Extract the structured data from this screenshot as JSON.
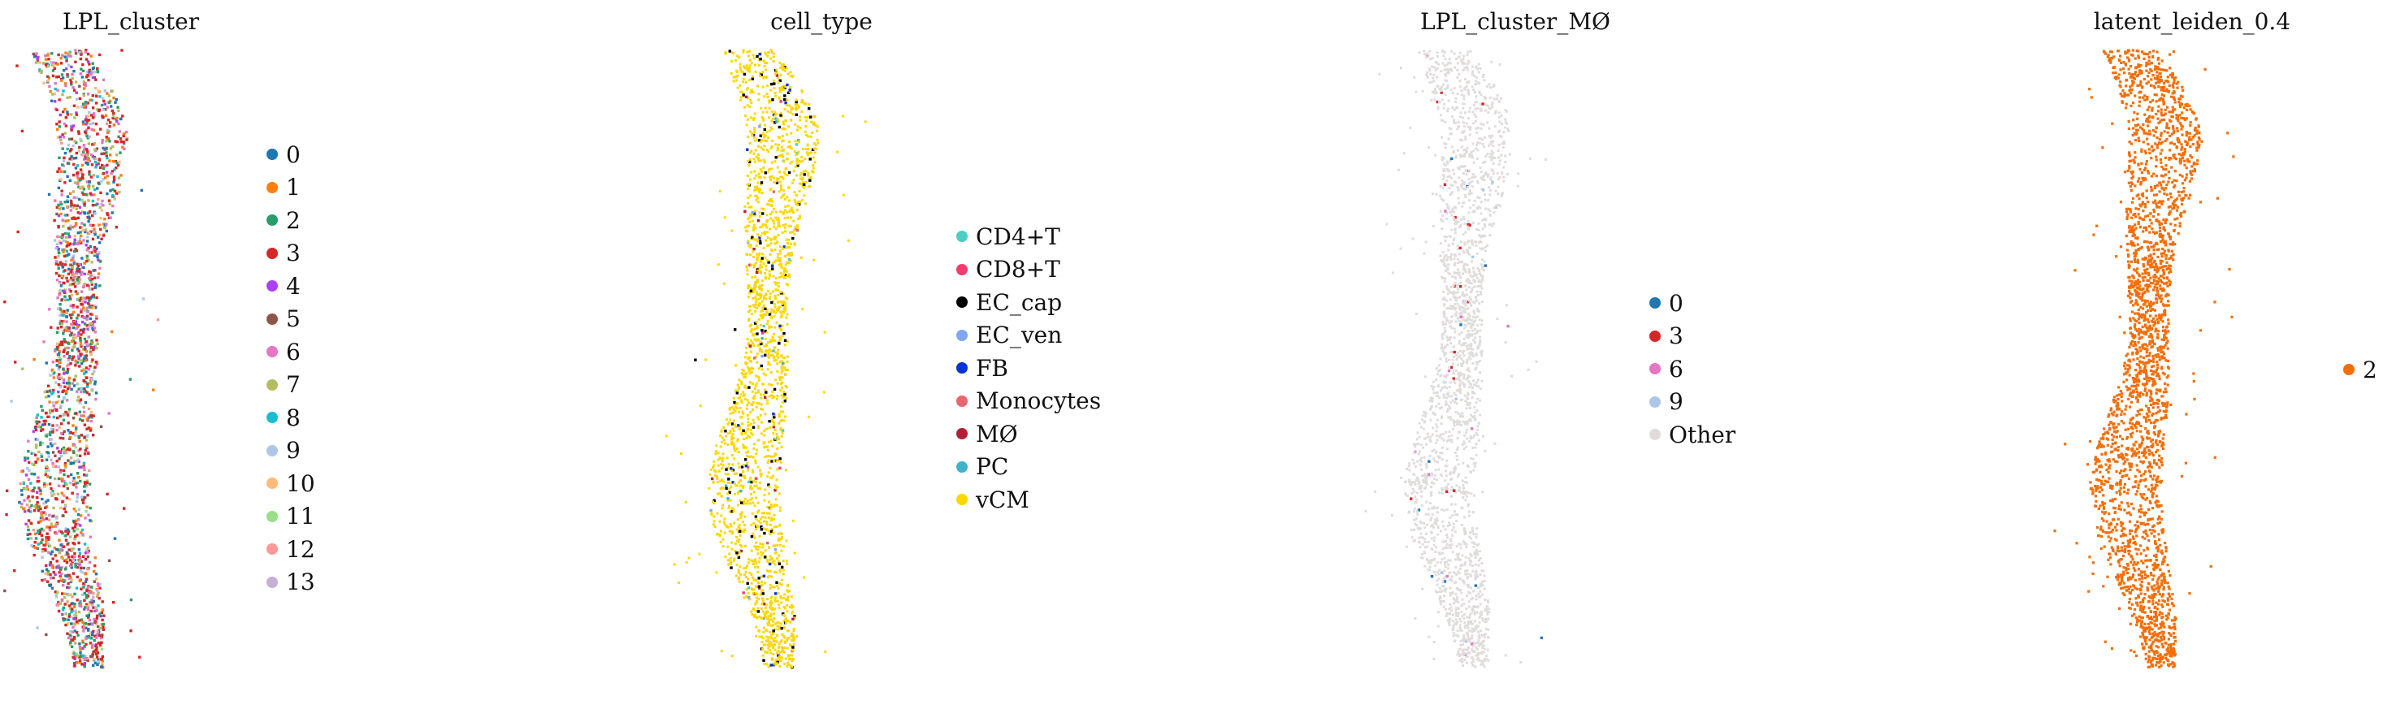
{
  "chart_data": [
    {
      "type": "scatter",
      "title": "LPL_cluster",
      "legend_loc": "right margin",
      "grid": false,
      "axes": "off",
      "categories": [
        "0",
        "1",
        "2",
        "3",
        "4",
        "5",
        "6",
        "7",
        "8",
        "9",
        "10",
        "11",
        "12",
        "13"
      ],
      "colors": [
        "#1f77b4",
        "#ff7f0e",
        "#279e68",
        "#d62728",
        "#aa40fc",
        "#8c564b",
        "#e377c2",
        "#b5bd61",
        "#17becf",
        "#aec7e8",
        "#ffbb78",
        "#98df8a",
        "#ff9896",
        "#c5b0d5"
      ],
      "spot_composition": {
        "0": 0.08,
        "1": 0.08,
        "2": 0.1,
        "3": 0.28,
        "4": 0.04,
        "5": 0.04,
        "6": 0.12,
        "7": 0.08,
        "8": 0.04,
        "9": 0.06,
        "10": 0.03,
        "11": 0.02,
        "12": 0.02,
        "13": 0.01
      },
      "background_color": null
    },
    {
      "type": "scatter",
      "title": "cell_type",
      "legend_loc": "right margin",
      "grid": false,
      "axes": "off",
      "categories": [
        "CD4+T",
        "CD8+T",
        "EC_cap",
        "EC_ven",
        "FB",
        "Monocytes",
        "MØ",
        "PC",
        "vCM"
      ],
      "colors": [
        "#4ecdc4",
        "#f53c6e",
        "#000000",
        "#7fa7f2",
        "#0a33d6",
        "#e8676f",
        "#b21f35",
        "#3fb3c9",
        "#ffd700"
      ],
      "spot_composition": {
        "CD4+T": 0.005,
        "CD8+T": 0.005,
        "EC_cap": 0.06,
        "EC_ven": 0.005,
        "FB": 0.01,
        "Monocytes": 0.005,
        "MØ": 0.005,
        "PC": 0.005,
        "vCM": 0.9
      },
      "background_color": null
    },
    {
      "type": "scatter",
      "title": "LPL_cluster_MØ",
      "legend_loc": "right margin",
      "grid": false,
      "axes": "off",
      "categories": [
        "0",
        "3",
        "6",
        "9",
        "Other"
      ],
      "colors": [
        "#1f77b4",
        "#d62728",
        "#e377c2",
        "#aec7e8",
        "#e0dcdc"
      ],
      "spot_composition": {
        "0": 0.004,
        "3": 0.01,
        "6": 0.004,
        "9": 0.004,
        "Other": 0.978
      },
      "background_color": null
    },
    {
      "type": "scatter",
      "title": "latent_leiden_0.4",
      "legend_loc": "right margin",
      "grid": false,
      "axes": "off",
      "categories": [
        "2"
      ],
      "colors": [
        "#f46e08"
      ],
      "spot_composition": {
        "2": 1.0
      },
      "background_color": null
    }
  ]
}
